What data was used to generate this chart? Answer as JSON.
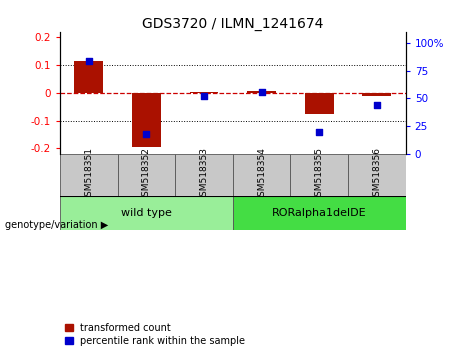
{
  "title": "GDS3720 / ILMN_1241674",
  "samples": [
    "GSM518351",
    "GSM518352",
    "GSM518353",
    "GSM518354",
    "GSM518355",
    "GSM518356"
  ],
  "red_values": [
    0.115,
    -0.195,
    0.002,
    0.008,
    -0.075,
    -0.012
  ],
  "blue_values": [
    0.84,
    0.18,
    0.52,
    0.56,
    0.2,
    0.44
  ],
  "ylim_left": [
    -0.22,
    0.22
  ],
  "ylim_right": [
    0.0,
    1.1
  ],
  "yticks_left": [
    -0.2,
    -0.1,
    0.0,
    0.1,
    0.2
  ],
  "yticks_right": [
    0.0,
    0.25,
    0.5,
    0.75,
    1.0
  ],
  "ytick_labels_left": [
    "-0.2",
    "-0.1",
    "0",
    "0.1",
    "0.2"
  ],
  "ytick_labels_right": [
    "0",
    "25",
    "50",
    "75",
    "100%"
  ],
  "red_color": "#AA1100",
  "blue_color": "#0000CC",
  "dashed_line_color": "#CC0000",
  "group1_label": "wild type",
  "group2_label": "RORalpha1delDE",
  "group1_color": "#99EE99",
  "group2_color": "#44DD44",
  "group1_samples": [
    0,
    1,
    2
  ],
  "group2_samples": [
    3,
    4,
    5
  ],
  "legend_red": "transformed count",
  "legend_blue": "percentile rank within the sample",
  "bottom_label": "genotype/variation",
  "bar_width": 0.5,
  "sample_box_color": "#C8C8C8"
}
